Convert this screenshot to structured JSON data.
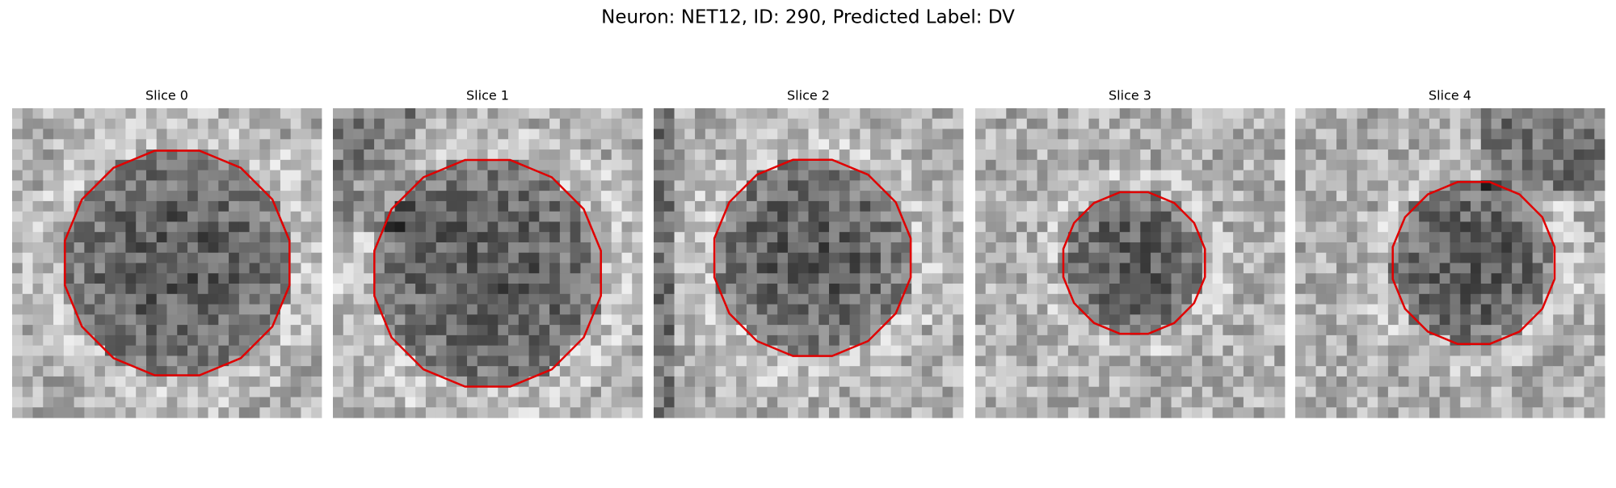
{
  "title": "Neuron: NET12, ID: 290, Predicted Label: DV",
  "panels": [
    {
      "title": "Slice 0"
    },
    {
      "title": "Slice 1"
    },
    {
      "title": "Slice 2"
    },
    {
      "title": "Slice 3"
    },
    {
      "title": "Slice 4"
    }
  ]
}
